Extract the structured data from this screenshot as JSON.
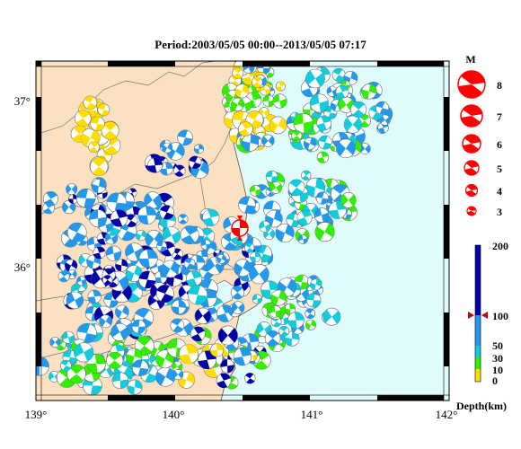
{
  "title": "Period:2003/05/05 00:00--2013/05/05 07:17",
  "axes": {
    "x_ticks": [
      "139°",
      "140°",
      "141°",
      "142°"
    ],
    "y_ticks": [
      "37°",
      "36°"
    ]
  },
  "magnitude_legend": {
    "header": "M",
    "labels": [
      "8",
      "7",
      "6",
      "5",
      "4",
      "3"
    ]
  },
  "depth_scale": {
    "unit_label": "Depth(km)",
    "ticks": [
      "200",
      "100",
      "50",
      "30",
      "10",
      "0"
    ],
    "marker_value": 100
  },
  "colors": {
    "land": "#fbe1c1",
    "sea": "#e0fbfb",
    "depth_0_10": "#ffdd00",
    "depth_10_30": "#33ee00",
    "depth_30_50": "#11ccdd",
    "depth_50_100": "#2299ee",
    "depth_100_200": "#0000aa",
    "highlight": "#ff0000"
  },
  "highlight_event": {
    "lon": 140.47,
    "lat": 36.11
  }
}
